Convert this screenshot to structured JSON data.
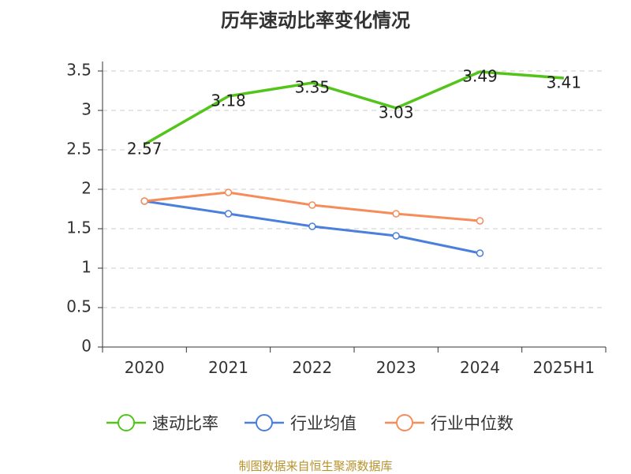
{
  "chart_data": {
    "type": "line",
    "title": "历年速动比率变化情况",
    "categories": [
      "2020",
      "2021",
      "2022",
      "2023",
      "2024",
      "2025H1"
    ],
    "y_ticks": [
      "0",
      "0.5",
      "1",
      "1.5",
      "2",
      "2.5",
      "3",
      "3.5"
    ],
    "ylim": [
      0,
      3.5
    ],
    "grid": true,
    "legend_position": "bottom",
    "series": [
      {
        "name": "速动比率",
        "color": "#52c41a",
        "values": [
          2.57,
          3.18,
          3.35,
          3.03,
          3.49,
          3.41
        ],
        "labels": [
          "2.57",
          "3.18",
          "3.35",
          "3.03",
          "3.49",
          "3.41"
        ],
        "markers": false
      },
      {
        "name": "行业均值",
        "color": "#4a7fdb",
        "values": [
          1.85,
          1.69,
          1.53,
          1.41,
          1.19,
          null
        ],
        "markers": true
      },
      {
        "name": "行业中位数",
        "color": "#f58c5a",
        "values": [
          1.85,
          1.96,
          1.8,
          1.69,
          1.6,
          null
        ],
        "markers": true
      }
    ]
  },
  "source": "制图数据来自恒生聚源数据库"
}
